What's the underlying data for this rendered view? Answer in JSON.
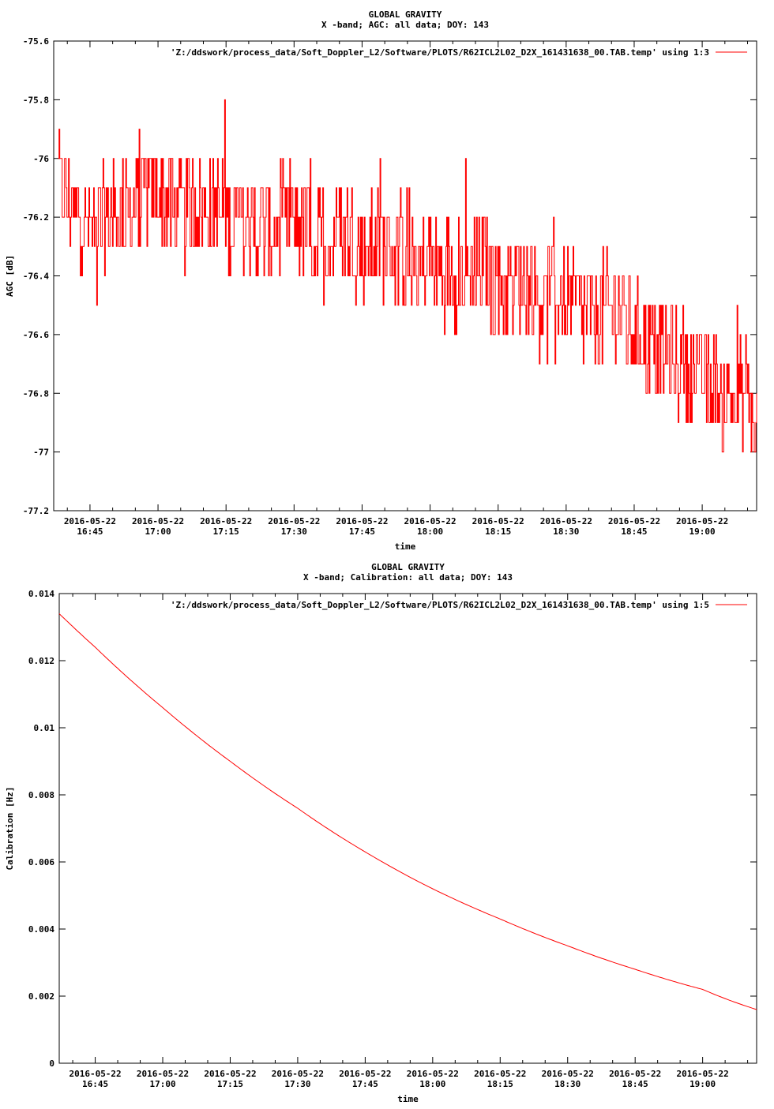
{
  "colors": {
    "series": "#ff0000",
    "axis": "#000000",
    "background": "#ffffff"
  },
  "chart_data": [
    {
      "type": "line",
      "title": "GLOBAL GRAVITY",
      "subtitle": "X -band; AGC: all data; DOY: 143",
      "xlabel": "time",
      "ylabel": "AGC [dB]",
      "ylim": [
        -77.2,
        -75.6
      ],
      "xlim": [
        "2016-05-22 16:37",
        "2016-05-22 19:12"
      ],
      "grid": false,
      "legend_position": "top-right",
      "y_ticks": [
        -75.6,
        -75.8,
        -76,
        -76.2,
        -76.4,
        -76.6,
        -76.8,
        -77,
        -77.2
      ],
      "y_tick_labels": [
        "-75.6",
        "-75.8",
        "-76",
        "-76.2",
        "-76.4",
        "-76.6",
        "-76.8",
        "-77",
        "-77.2"
      ],
      "x_ticks": [
        "2016-05-22 16:45",
        "2016-05-22 17:00",
        "2016-05-22 17:15",
        "2016-05-22 17:30",
        "2016-05-22 17:45",
        "2016-05-22 18:00",
        "2016-05-22 18:15",
        "2016-05-22 18:30",
        "2016-05-22 18:45",
        "2016-05-22 19:00"
      ],
      "x_tick_labels": [
        {
          "date": "2016-05-22",
          "time": "16:45"
        },
        {
          "date": "2016-05-22",
          "time": "17:00"
        },
        {
          "date": "2016-05-22",
          "time": "17:15"
        },
        {
          "date": "2016-05-22",
          "time": "17:30"
        },
        {
          "date": "2016-05-22",
          "time": "17:45"
        },
        {
          "date": "2016-05-22",
          "time": "18:00"
        },
        {
          "date": "2016-05-22",
          "time": "18:15"
        },
        {
          "date": "2016-05-22",
          "time": "18:30"
        },
        {
          "date": "2016-05-22",
          "time": "18:45"
        },
        {
          "date": "2016-05-22",
          "time": "19:00"
        }
      ],
      "series": [
        {
          "name": "'Z:/ddswork/process_data/Soft_Doppler_L2/Software/PLOTS/R62ICL2L02_D2X_161431638_00.TAB.temp' using 1:3",
          "x": [
            "2016-05-22 16:38",
            "2016-05-22 16:45",
            "2016-05-22 16:50",
            "2016-05-22 16:55",
            "2016-05-22 17:00",
            "2016-05-22 17:05",
            "2016-05-22 17:10",
            "2016-05-22 17:15",
            "2016-05-22 17:20",
            "2016-05-22 17:25",
            "2016-05-22 17:30",
            "2016-05-22 17:35",
            "2016-05-22 17:40",
            "2016-05-22 17:45",
            "2016-05-22 17:50",
            "2016-05-22 17:55",
            "2016-05-22 18:00",
            "2016-05-22 18:05",
            "2016-05-22 18:10",
            "2016-05-22 18:15",
            "2016-05-22 18:20",
            "2016-05-22 18:25",
            "2016-05-22 18:30",
            "2016-05-22 18:35",
            "2016-05-22 18:40",
            "2016-05-22 18:45",
            "2016-05-22 18:50",
            "2016-05-22 18:55",
            "2016-05-22 19:00",
            "2016-05-22 19:05",
            "2016-05-22 19:10",
            "2016-05-22 19:12"
          ],
          "y": [
            -76.1,
            -76.25,
            -76.2,
            -76.15,
            -76.1,
            -76.2,
            -76.15,
            -76.2,
            -76.25,
            -76.25,
            -76.2,
            -76.3,
            -76.25,
            -76.3,
            -76.3,
            -76.35,
            -76.35,
            -76.4,
            -76.35,
            -76.45,
            -76.4,
            -76.5,
            -76.45,
            -76.55,
            -76.5,
            -76.6,
            -76.65,
            -76.7,
            -76.75,
            -76.8,
            -76.85,
            -76.95
          ]
        }
      ]
    },
    {
      "type": "line",
      "title": "GLOBAL GRAVITY",
      "subtitle": "X -band; Calibration: all data; DOY: 143",
      "xlabel": "time",
      "ylabel": "Calibration [Hz]",
      "ylim": [
        0,
        0.014
      ],
      "xlim": [
        "2016-05-22 16:37",
        "2016-05-22 19:12"
      ],
      "grid": false,
      "legend_position": "top-right",
      "y_ticks": [
        0,
        0.002,
        0.004,
        0.006,
        0.008,
        0.01,
        0.012,
        0.014
      ],
      "y_tick_labels": [
        "0",
        "0.002",
        "0.004",
        "0.006",
        "0.008",
        "0.01",
        "0.012",
        "0.014"
      ],
      "x_ticks": [
        "2016-05-22 16:45",
        "2016-05-22 17:00",
        "2016-05-22 17:15",
        "2016-05-22 17:30",
        "2016-05-22 17:45",
        "2016-05-22 18:00",
        "2016-05-22 18:15",
        "2016-05-22 18:30",
        "2016-05-22 18:45",
        "2016-05-22 19:00"
      ],
      "x_tick_labels": [
        {
          "date": "2016-05-22",
          "time": "16:45"
        },
        {
          "date": "2016-05-22",
          "time": "17:00"
        },
        {
          "date": "2016-05-22",
          "time": "17:15"
        },
        {
          "date": "2016-05-22",
          "time": "17:30"
        },
        {
          "date": "2016-05-22",
          "time": "17:45"
        },
        {
          "date": "2016-05-22",
          "time": "18:00"
        },
        {
          "date": "2016-05-22",
          "time": "18:15"
        },
        {
          "date": "2016-05-22",
          "time": "18:30"
        },
        {
          "date": "2016-05-22",
          "time": "18:45"
        },
        {
          "date": "2016-05-22",
          "time": "19:00"
        }
      ],
      "series": [
        {
          "name": "'Z:/ddswork/process_data/Soft_Doppler_L2/Software/PLOTS/R62ICL2L02_D2X_161431638_00.TAB.temp' using 1:5",
          "x": [
            "2016-05-22 16:37",
            "2016-05-22 16:45",
            "2016-05-22 17:00",
            "2016-05-22 17:15",
            "2016-05-22 17:30",
            "2016-05-22 17:45",
            "2016-05-22 18:00",
            "2016-05-22 18:15",
            "2016-05-22 18:30",
            "2016-05-22 18:45",
            "2016-05-22 19:00",
            "2016-05-22 19:12"
          ],
          "y": [
            0.0134,
            0.0124,
            0.0106,
            0.009,
            0.0076,
            0.0063,
            0.0052,
            0.0043,
            0.0035,
            0.0028,
            0.0022,
            0.0016
          ]
        }
      ]
    }
  ]
}
